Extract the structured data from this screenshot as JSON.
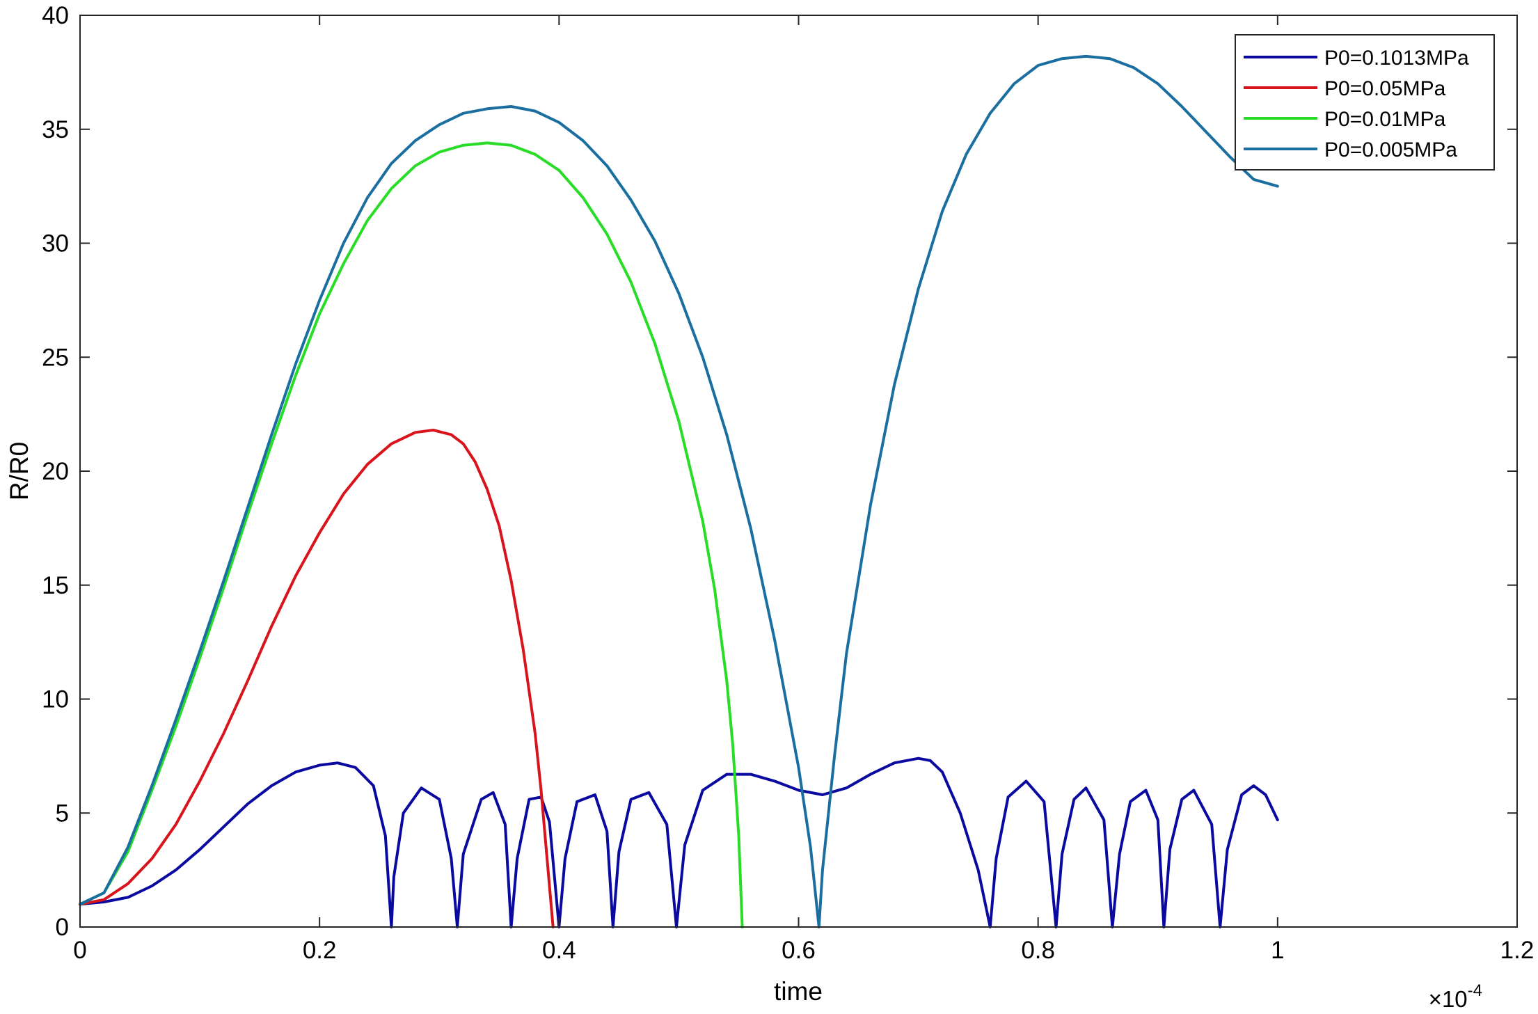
{
  "chart_data": {
    "type": "line",
    "title": "",
    "xlabel": "time",
    "ylabel": "R/R0",
    "x_multiplier": "×10",
    "x_multiplier_exp": "-4",
    "xlim": [
      0,
      1.2
    ],
    "ylim": [
      0,
      40
    ],
    "x_ticks": [
      "0",
      "0.2",
      "0.4",
      "0.6",
      "0.8",
      "1",
      "1.2"
    ],
    "y_ticks": [
      "0",
      "5",
      "10",
      "15",
      "20",
      "25",
      "30",
      "35",
      "40"
    ],
    "grid": false,
    "legend_position": "top-right",
    "series": [
      {
        "name": "P0=0.1013MPa",
        "color": "#0a0aa0",
        "points": [
          [
            0,
            1
          ],
          [
            0.02,
            1.1
          ],
          [
            0.04,
            1.3
          ],
          [
            0.06,
            1.8
          ],
          [
            0.08,
            2.5
          ],
          [
            0.1,
            3.4
          ],
          [
            0.12,
            4.4
          ],
          [
            0.14,
            5.4
          ],
          [
            0.16,
            6.2
          ],
          [
            0.18,
            6.8
          ],
          [
            0.2,
            7.1
          ],
          [
            0.215,
            7.2
          ],
          [
            0.23,
            7.0
          ],
          [
            0.245,
            6.2
          ],
          [
            0.255,
            4.0
          ],
          [
            0.26,
            0
          ],
          [
            0.262,
            2.2
          ],
          [
            0.27,
            5.0
          ],
          [
            0.285,
            6.1
          ],
          [
            0.3,
            5.6
          ],
          [
            0.31,
            3.0
          ],
          [
            0.315,
            0
          ],
          [
            0.32,
            3.2
          ],
          [
            0.335,
            5.6
          ],
          [
            0.345,
            5.9
          ],
          [
            0.355,
            4.5
          ],
          [
            0.36,
            0
          ],
          [
            0.365,
            3.0
          ],
          [
            0.375,
            5.6
          ],
          [
            0.385,
            5.7
          ],
          [
            0.392,
            4.6
          ],
          [
            0.4,
            0
          ],
          [
            0.405,
            3.0
          ],
          [
            0.415,
            5.5
          ],
          [
            0.43,
            5.8
          ],
          [
            0.44,
            4.2
          ],
          [
            0.445,
            0
          ],
          [
            0.45,
            3.3
          ],
          [
            0.46,
            5.6
          ],
          [
            0.475,
            5.9
          ],
          [
            0.49,
            4.5
          ],
          [
            0.498,
            0
          ],
          [
            0.505,
            3.6
          ],
          [
            0.52,
            6.0
          ],
          [
            0.54,
            6.7
          ],
          [
            0.56,
            6.7
          ],
          [
            0.58,
            6.4
          ],
          [
            0.6,
            6.0
          ],
          [
            0.62,
            5.8
          ],
          [
            0.64,
            6.1
          ],
          [
            0.66,
            6.7
          ],
          [
            0.68,
            7.2
          ],
          [
            0.7,
            7.4
          ],
          [
            0.71,
            7.3
          ],
          [
            0.72,
            6.8
          ],
          [
            0.735,
            5.0
          ],
          [
            0.75,
            2.5
          ],
          [
            0.76,
            0
          ],
          [
            0.765,
            3.0
          ],
          [
            0.775,
            5.7
          ],
          [
            0.79,
            6.4
          ],
          [
            0.805,
            5.5
          ],
          [
            0.815,
            0
          ],
          [
            0.82,
            3.2
          ],
          [
            0.83,
            5.6
          ],
          [
            0.84,
            6.1
          ],
          [
            0.855,
            4.7
          ],
          [
            0.862,
            0
          ],
          [
            0.868,
            3.2
          ],
          [
            0.877,
            5.5
          ],
          [
            0.89,
            6.0
          ],
          [
            0.9,
            4.7
          ],
          [
            0.905,
            0
          ],
          [
            0.91,
            3.4
          ],
          [
            0.92,
            5.6
          ],
          [
            0.93,
            6.0
          ],
          [
            0.945,
            4.5
          ],
          [
            0.952,
            0
          ],
          [
            0.958,
            3.4
          ],
          [
            0.97,
            5.8
          ],
          [
            0.98,
            6.2
          ],
          [
            0.99,
            5.8
          ],
          [
            1.0,
            4.7
          ]
        ]
      },
      {
        "name": "P0=0.05MPa",
        "color": "#d8141c",
        "points": [
          [
            0,
            1
          ],
          [
            0.02,
            1.2
          ],
          [
            0.04,
            1.9
          ],
          [
            0.06,
            3.0
          ],
          [
            0.08,
            4.5
          ],
          [
            0.1,
            6.4
          ],
          [
            0.12,
            8.5
          ],
          [
            0.14,
            10.8
          ],
          [
            0.16,
            13.2
          ],
          [
            0.18,
            15.4
          ],
          [
            0.2,
            17.3
          ],
          [
            0.22,
            19.0
          ],
          [
            0.24,
            20.3
          ],
          [
            0.26,
            21.2
          ],
          [
            0.28,
            21.7
          ],
          [
            0.295,
            21.8
          ],
          [
            0.31,
            21.6
          ],
          [
            0.32,
            21.2
          ],
          [
            0.33,
            20.4
          ],
          [
            0.34,
            19.2
          ],
          [
            0.35,
            17.6
          ],
          [
            0.36,
            15.2
          ],
          [
            0.37,
            12.2
          ],
          [
            0.38,
            8.5
          ],
          [
            0.385,
            6.0
          ],
          [
            0.39,
            3.0
          ],
          [
            0.395,
            0
          ]
        ]
      },
      {
        "name": "P0=0.01MPa",
        "color": "#28dc28",
        "points": [
          [
            0,
            1
          ],
          [
            0.02,
            1.5
          ],
          [
            0.04,
            3.3
          ],
          [
            0.06,
            6.0
          ],
          [
            0.08,
            8.8
          ],
          [
            0.1,
            11.8
          ],
          [
            0.12,
            14.9
          ],
          [
            0.14,
            18.1
          ],
          [
            0.16,
            21.2
          ],
          [
            0.18,
            24.2
          ],
          [
            0.2,
            26.9
          ],
          [
            0.22,
            29.1
          ],
          [
            0.24,
            31.0
          ],
          [
            0.26,
            32.4
          ],
          [
            0.28,
            33.4
          ],
          [
            0.3,
            34.0
          ],
          [
            0.32,
            34.3
          ],
          [
            0.34,
            34.4
          ],
          [
            0.36,
            34.3
          ],
          [
            0.38,
            33.9
          ],
          [
            0.4,
            33.2
          ],
          [
            0.42,
            32.0
          ],
          [
            0.44,
            30.4
          ],
          [
            0.46,
            28.3
          ],
          [
            0.48,
            25.6
          ],
          [
            0.5,
            22.2
          ],
          [
            0.52,
            17.8
          ],
          [
            0.53,
            14.8
          ],
          [
            0.54,
            10.8
          ],
          [
            0.545,
            8.0
          ],
          [
            0.55,
            4.0
          ],
          [
            0.553,
            0
          ]
        ]
      },
      {
        "name": "P0=0.005MPa",
        "color": "#1a6fa0",
        "points": [
          [
            0,
            1
          ],
          [
            0.02,
            1.5
          ],
          [
            0.04,
            3.5
          ],
          [
            0.06,
            6.2
          ],
          [
            0.08,
            9.1
          ],
          [
            0.1,
            12.1
          ],
          [
            0.12,
            15.2
          ],
          [
            0.14,
            18.4
          ],
          [
            0.16,
            21.6
          ],
          [
            0.18,
            24.7
          ],
          [
            0.2,
            27.5
          ],
          [
            0.22,
            30.0
          ],
          [
            0.24,
            32.0
          ],
          [
            0.26,
            33.5
          ],
          [
            0.28,
            34.5
          ],
          [
            0.3,
            35.2
          ],
          [
            0.32,
            35.7
          ],
          [
            0.34,
            35.9
          ],
          [
            0.36,
            36.0
          ],
          [
            0.38,
            35.8
          ],
          [
            0.4,
            35.3
          ],
          [
            0.42,
            34.5
          ],
          [
            0.44,
            33.4
          ],
          [
            0.46,
            31.9
          ],
          [
            0.48,
            30.1
          ],
          [
            0.5,
            27.8
          ],
          [
            0.52,
            25.0
          ],
          [
            0.54,
            21.6
          ],
          [
            0.56,
            17.5
          ],
          [
            0.58,
            12.6
          ],
          [
            0.6,
            7.0
          ],
          [
            0.61,
            3.5
          ],
          [
            0.617,
            0
          ],
          [
            0.62,
            2.5
          ],
          [
            0.63,
            7.5
          ],
          [
            0.64,
            12.0
          ],
          [
            0.66,
            18.5
          ],
          [
            0.68,
            23.8
          ],
          [
            0.7,
            28.0
          ],
          [
            0.72,
            31.4
          ],
          [
            0.74,
            33.9
          ],
          [
            0.76,
            35.7
          ],
          [
            0.78,
            37.0
          ],
          [
            0.8,
            37.8
          ],
          [
            0.82,
            38.1
          ],
          [
            0.84,
            38.2
          ],
          [
            0.86,
            38.1
          ],
          [
            0.88,
            37.7
          ],
          [
            0.9,
            37.0
          ],
          [
            0.92,
            36.0
          ],
          [
            0.94,
            34.9
          ],
          [
            0.96,
            33.8
          ],
          [
            0.98,
            32.8
          ],
          [
            1.0,
            32.5
          ]
        ]
      }
    ]
  }
}
